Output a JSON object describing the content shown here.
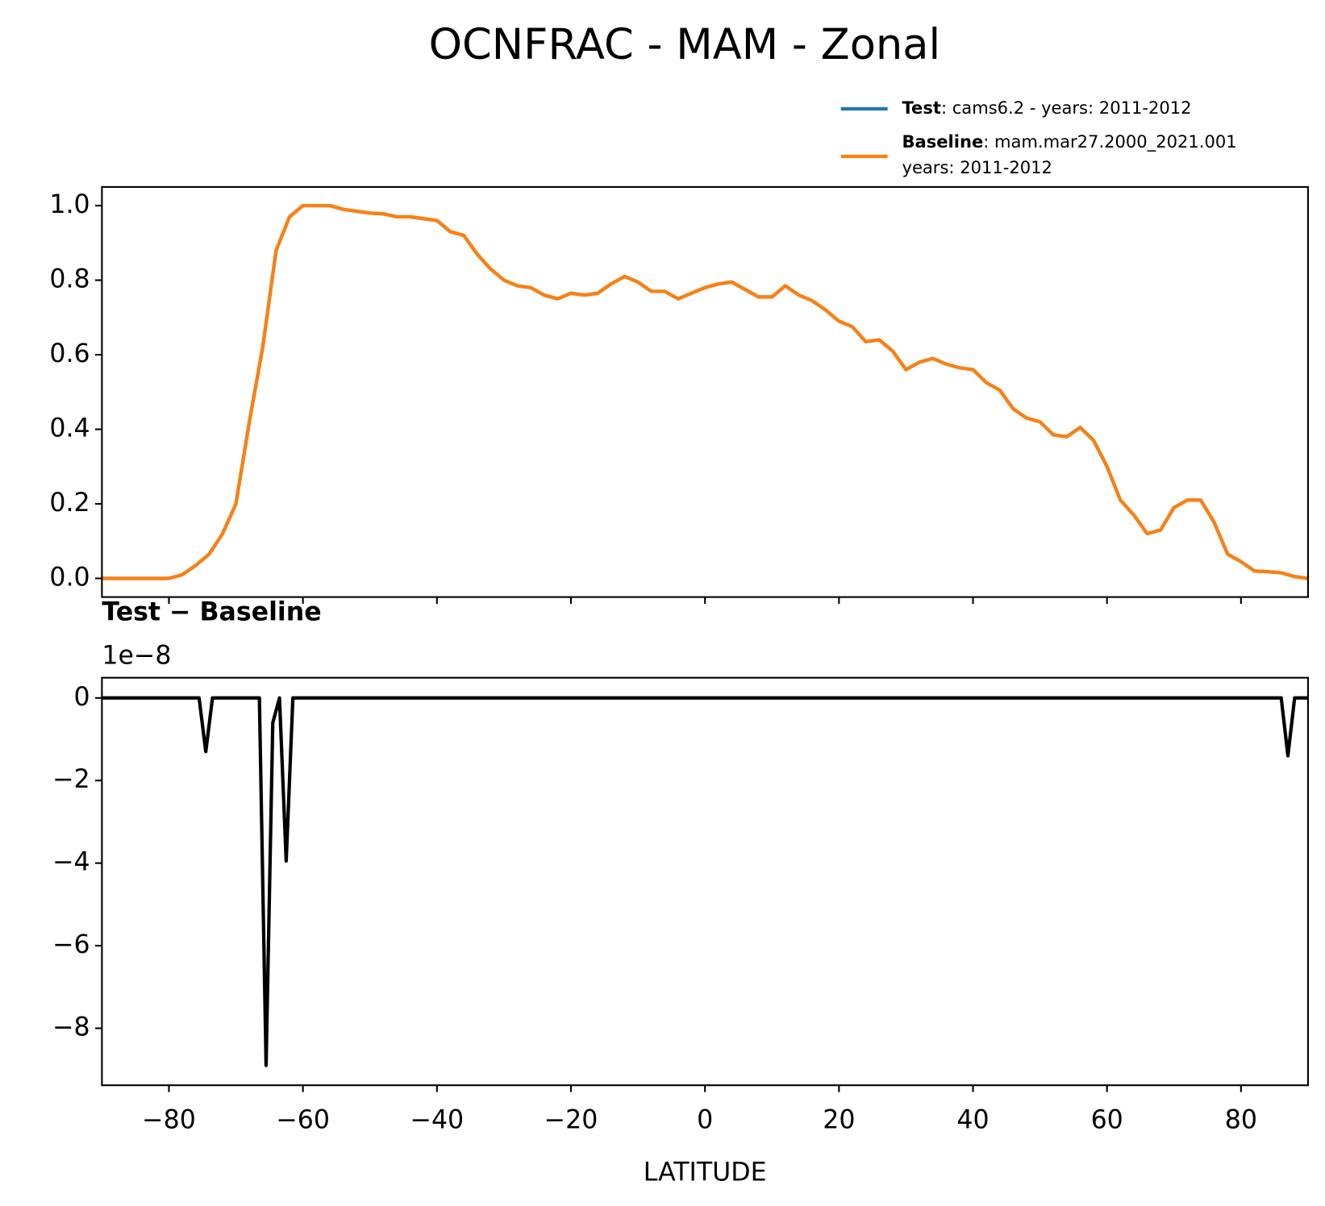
{
  "chart_data": [
    {
      "type": "line",
      "title": "OCNFRAC - MAM - Zonal",
      "x": [
        -90,
        -88,
        -86,
        -84,
        -82,
        -80,
        -78,
        -76,
        -74,
        -72,
        -70,
        -68,
        -66,
        -64,
        -62,
        -60,
        -58,
        -56,
        -54,
        -52,
        -50,
        -48,
        -46,
        -44,
        -42,
        -40,
        -38,
        -36,
        -34,
        -32,
        -30,
        -28,
        -26,
        -24,
        -22,
        -20,
        -18,
        -16,
        -14,
        -12,
        -10,
        -8,
        -6,
        -4,
        -2,
        0,
        2,
        4,
        6,
        8,
        10,
        12,
        14,
        16,
        18,
        20,
        22,
        24,
        26,
        28,
        30,
        32,
        34,
        36,
        38,
        40,
        42,
        44,
        46,
        48,
        50,
        52,
        54,
        56,
        58,
        60,
        62,
        64,
        66,
        68,
        70,
        72,
        74,
        76,
        78,
        80,
        82,
        84,
        86,
        88,
        90
      ],
      "series": [
        {
          "name": "Test",
          "legend_text": [
            ": cams6.2 - years: 2011-2012"
          ],
          "color": "#1f77b4",
          "values": [
            0,
            0,
            0,
            0,
            0,
            0,
            0.01,
            0.035,
            0.065,
            0.12,
            0.2,
            0.42,
            0.62,
            0.88,
            0.97,
            1.0,
            1.0,
            1.0,
            0.99,
            0.985,
            0.98,
            0.978,
            0.97,
            0.97,
            0.965,
            0.96,
            0.93,
            0.92,
            0.87,
            0.83,
            0.8,
            0.785,
            0.78,
            0.76,
            0.75,
            0.765,
            0.76,
            0.765,
            0.79,
            0.81,
            0.795,
            0.77,
            0.77,
            0.75,
            0.765,
            0.78,
            0.79,
            0.795,
            0.775,
            0.755,
            0.755,
            0.785,
            0.76,
            0.745,
            0.72,
            0.69,
            0.675,
            0.635,
            0.64,
            0.61,
            0.56,
            0.58,
            0.59,
            0.575,
            0.565,
            0.56,
            0.525,
            0.505,
            0.455,
            0.43,
            0.42,
            0.385,
            0.38,
            0.405,
            0.37,
            0.3,
            0.21,
            0.17,
            0.12,
            0.13,
            0.19,
            0.21,
            0.21,
            0.15,
            0.065,
            0.045,
            0.02,
            0.018,
            0.015,
            0.005,
            0
          ]
        },
        {
          "name": "Baseline",
          "legend_text": [
            ": mam.mar27.2000_2021.001",
            "years: 2011-2012"
          ],
          "color": "#ff7f0e",
          "values": [
            0,
            0,
            0,
            0,
            0,
            0,
            0.01,
            0.035,
            0.065,
            0.12,
            0.2,
            0.42,
            0.62,
            0.88,
            0.97,
            1.0,
            1.0,
            1.0,
            0.99,
            0.985,
            0.98,
            0.978,
            0.97,
            0.97,
            0.965,
            0.96,
            0.93,
            0.92,
            0.87,
            0.83,
            0.8,
            0.785,
            0.78,
            0.76,
            0.75,
            0.765,
            0.76,
            0.765,
            0.79,
            0.81,
            0.795,
            0.77,
            0.77,
            0.75,
            0.765,
            0.78,
            0.79,
            0.795,
            0.775,
            0.755,
            0.755,
            0.785,
            0.76,
            0.745,
            0.72,
            0.69,
            0.675,
            0.635,
            0.64,
            0.61,
            0.56,
            0.58,
            0.59,
            0.575,
            0.565,
            0.56,
            0.525,
            0.505,
            0.455,
            0.43,
            0.42,
            0.385,
            0.38,
            0.405,
            0.37,
            0.3,
            0.21,
            0.17,
            0.12,
            0.13,
            0.19,
            0.21,
            0.21,
            0.15,
            0.065,
            0.045,
            0.02,
            0.018,
            0.015,
            0.005,
            0
          ]
        }
      ],
      "xlim": [
        -90,
        90
      ],
      "xticks": [
        -80,
        -60,
        -40,
        -20,
        0,
        20,
        40,
        60,
        80
      ],
      "ylim": [
        -0.05,
        1.05
      ],
      "yticks": [
        {
          "value": 0,
          "label": "0.0"
        },
        0.2,
        0.4,
        0.6,
        0.8,
        {
          "value": 1,
          "label": "1.0"
        }
      ]
    },
    {
      "type": "line",
      "title": "Test − Baseline",
      "offset_text": "1e−8",
      "xlabel": "LATITUDE",
      "x": [
        -90,
        -75.5,
        -74.5,
        -73.5,
        -67,
        -66.5,
        -65.5,
        -64.5,
        -63.5,
        -62.5,
        -61.5,
        86,
        87,
        88,
        90
      ],
      "series": [
        {
          "name": "Test − Baseline",
          "color": "#000000",
          "values": [
            0,
            0,
            -1.3,
            0,
            0,
            0,
            -8.9,
            -0.6,
            0,
            -3.95,
            0,
            0,
            -1.4,
            0,
            0
          ]
        }
      ],
      "xlim": [
        -90,
        90
      ],
      "xticks": [
        {
          "value": -80,
          "label": "−80"
        },
        {
          "value": -60,
          "label": "−60"
        },
        {
          "value": -40,
          "label": "−40"
        },
        {
          "value": -20,
          "label": "−20"
        },
        0,
        20,
        40,
        60,
        80
      ],
      "ylim": [
        -9.38,
        0.49
      ],
      "yticks": [
        {
          "value": -8,
          "label": "−8"
        },
        {
          "value": -6,
          "label": "−6"
        },
        {
          "value": -4,
          "label": "−4"
        },
        {
          "value": -2,
          "label": "−2"
        },
        0
      ]
    }
  ]
}
